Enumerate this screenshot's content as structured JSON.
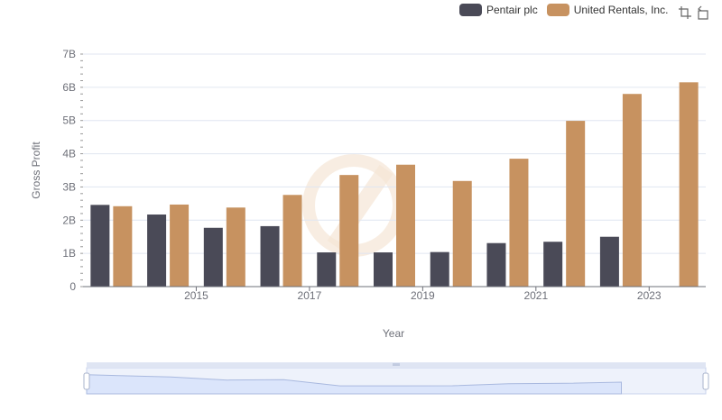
{
  "legend": {
    "series_a": "Pentair plc",
    "series_b": "United Rentals, Inc."
  },
  "toolbox": {
    "zoom_icon": "data-zoom-icon",
    "restore_icon": "restore-icon"
  },
  "colors": {
    "series_a": "#4a4a57",
    "series_b": "#c79260",
    "grid": "#e0e6f1",
    "axis": "#6e7079",
    "slider_fill": "#dbe5fb",
    "slider_border": "#c8d3ec"
  },
  "chart_data": {
    "type": "bar",
    "title": "",
    "xlabel": "Year",
    "ylabel": "Gross Profit",
    "x": [
      2014,
      2015,
      2016,
      2017,
      2018,
      2019,
      2020,
      2021,
      2022,
      2023,
      2024
    ],
    "xtick_labels": [
      "2015",
      "2017",
      "2019",
      "2021",
      "2023"
    ],
    "ylim": [
      0,
      7000000000
    ],
    "ytick_labels": [
      "0",
      "1B",
      "2B",
      "3B",
      "4B",
      "5B",
      "6B",
      "7B"
    ],
    "series": [
      {
        "name": "Pentair plc",
        "values": [
          2460000000,
          2170000000,
          1770000000,
          1820000000,
          1030000000,
          1030000000,
          1040000000,
          1310000000,
          1350000000,
          1500000000,
          null
        ]
      },
      {
        "name": "United Rentals, Inc.",
        "values": [
          2420000000,
          2470000000,
          2380000000,
          2760000000,
          3360000000,
          3670000000,
          3180000000,
          3850000000,
          4990000000,
          5800000000,
          6150000000
        ]
      }
    ]
  }
}
